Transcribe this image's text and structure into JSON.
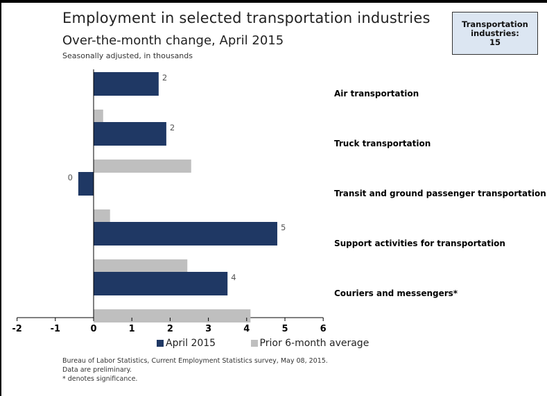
{
  "title": "Employment in selected transportation industries",
  "subtitle": "Over-the-month change, April 2015",
  "subnote": "Seasonally adjusted, in thousands",
  "badge": {
    "line1": "Transportation",
    "line2": "industries:",
    "line3": "15"
  },
  "legend": {
    "series1": "April 2015",
    "series2": "Prior 6-month average"
  },
  "source": {
    "line1": "Bureau of Labor Statistics, Current Employment Statistics survey, May 08, 2015.",
    "line2": "Data are preliminary.",
    "line3": "* denotes significance."
  },
  "colors": {
    "april": "#1f3864",
    "prior": "#bfbfbf"
  },
  "chart_data": {
    "type": "bar",
    "orientation": "horizontal",
    "categories": [
      "Air transportation",
      "Truck transportation",
      "Transit and ground passenger transportation",
      "Support activities for transportation",
      "Couriers and messengers*"
    ],
    "series": [
      {
        "name": "April 2015",
        "values": [
          1.7,
          1.9,
          -0.4,
          4.8,
          3.5
        ],
        "labels": [
          "2",
          "2",
          "0",
          "5",
          "4"
        ]
      },
      {
        "name": "Prior 6-month average",
        "values": [
          0.25,
          2.55,
          0.43,
          2.45,
          4.1
        ]
      }
    ],
    "xlim": [
      -2,
      6
    ],
    "xticks": [
      "-2",
      "-1",
      "0",
      "1",
      "2",
      "3",
      "4",
      "5",
      "6"
    ],
    "legend_position": "bottom"
  }
}
